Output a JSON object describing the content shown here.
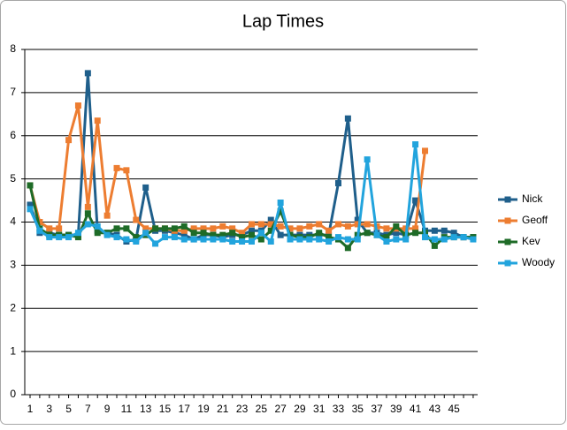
{
  "chart_data": {
    "type": "line",
    "title": "Lap Times",
    "categories": [
      1,
      null,
      3,
      null,
      5,
      null,
      7,
      null,
      9,
      null,
      11,
      null,
      13,
      null,
      15,
      null,
      17,
      null,
      19,
      null,
      21,
      null,
      23,
      null,
      25,
      null,
      27,
      null,
      29,
      null,
      31,
      null,
      33,
      null,
      35,
      null,
      37,
      null,
      39,
      null,
      41,
      null,
      43,
      null,
      45,
      null,
      null
    ],
    "series": [
      {
        "name": "Nick",
        "color": "#1f5f8b",
        "values": [
          4.4,
          3.75,
          3.75,
          3.7,
          3.7,
          3.7,
          7.45,
          3.8,
          3.75,
          3.7,
          3.55,
          3.6,
          4.8,
          3.8,
          3.8,
          3.75,
          3.7,
          3.6,
          3.7,
          3.7,
          3.65,
          3.7,
          3.7,
          3.8,
          3.8,
          4.05,
          3.7,
          3.7,
          3.7,
          3.7,
          3.7,
          3.7,
          4.9,
          6.4,
          4.05,
          3.75,
          3.75,
          3.7,
          3.75,
          3.7,
          4.5,
          3.8,
          3.8,
          3.8,
          3.75,
          3.65,
          3.65
        ]
      },
      {
        "name": "Geoff",
        "color": "#ed7d31",
        "values": [
          4.85,
          4.0,
          3.85,
          3.85,
          5.9,
          6.7,
          4.35,
          6.35,
          4.15,
          5.25,
          5.2,
          4.05,
          3.85,
          3.85,
          3.85,
          3.8,
          3.8,
          3.85,
          3.85,
          3.85,
          3.9,
          3.85,
          3.75,
          3.95,
          3.95,
          3.95,
          3.9,
          3.85,
          3.85,
          3.9,
          3.95,
          3.8,
          3.95,
          3.9,
          3.95,
          3.95,
          3.9,
          3.85,
          3.85,
          3.85,
          3.85,
          5.65,
          null,
          null,
          null,
          null,
          null
        ]
      },
      {
        "name": "Kev",
        "color": "#1e6b27",
        "values": [
          4.85,
          3.85,
          3.7,
          3.7,
          3.7,
          3.65,
          4.2,
          3.75,
          3.75,
          3.85,
          3.85,
          3.65,
          3.7,
          3.85,
          3.85,
          3.85,
          3.9,
          3.75,
          3.75,
          3.7,
          3.7,
          3.75,
          3.65,
          3.7,
          3.6,
          3.8,
          4.25,
          3.7,
          3.65,
          3.65,
          3.75,
          3.65,
          3.6,
          3.4,
          3.7,
          3.75,
          3.7,
          3.65,
          3.9,
          3.7,
          3.75,
          3.75,
          3.45,
          3.65,
          3.65,
          3.65,
          3.65
        ]
      },
      {
        "name": "Woody",
        "color": "#22a4dd",
        "values": [
          4.3,
          3.8,
          3.65,
          3.65,
          3.65,
          3.75,
          3.95,
          3.9,
          3.7,
          3.65,
          3.6,
          3.55,
          3.75,
          3.5,
          3.65,
          3.65,
          3.6,
          3.6,
          3.6,
          3.6,
          3.6,
          3.55,
          3.55,
          3.55,
          3.75,
          3.55,
          4.45,
          3.6,
          3.6,
          3.6,
          3.6,
          3.55,
          3.65,
          3.6,
          3.6,
          5.45,
          3.7,
          3.55,
          3.6,
          3.6,
          5.8,
          3.65,
          3.6,
          3.6,
          3.65,
          3.65,
          3.6
        ]
      }
    ],
    "ylim": [
      0,
      8
    ],
    "yticks": [
      0,
      1,
      2,
      3,
      4,
      5,
      6,
      7,
      8
    ],
    "grid": true,
    "legend": "right"
  }
}
